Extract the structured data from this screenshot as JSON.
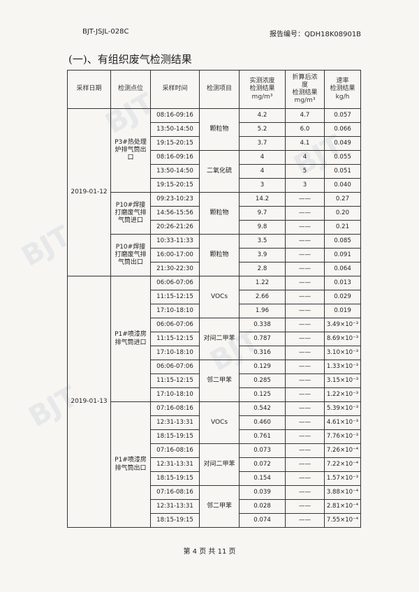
{
  "header": {
    "doc_code": "BJT-JSJL-028C",
    "report_number": "报告编号：QDH18K08901B"
  },
  "section_title": "(一)、有组织废气检测结果",
  "columns": [
    "采样日期",
    "检测点位",
    "采样时间",
    "检测项目",
    "实测浓度\n检测结果\nmg/m³",
    "折算后浓\n度\n检测结果\nmg/m³",
    "速率\n检测结果\nkg/h"
  ],
  "groups": [
    {
      "date": "2019-01-12",
      "locations": [
        {
          "name": "P3#热处理炉排气筒出口",
          "items": [
            {
              "name": "颗粒物",
              "samples": [
                {
                  "time": "08:16-09:16",
                  "conc": "4.2",
                  "corr": "4.7",
                  "rate": "0.057"
                },
                {
                  "time": "13:50-14:50",
                  "conc": "5.2",
                  "corr": "6.0",
                  "rate": "0.066"
                },
                {
                  "time": "19:15-20:15",
                  "conc": "3.7",
                  "corr": "4.1",
                  "rate": "0.049"
                }
              ]
            },
            {
              "name": "二氧化硫",
              "samples": [
                {
                  "time": "08:16-09:16",
                  "conc": "4",
                  "corr": "4",
                  "rate": "0.055"
                },
                {
                  "time": "13:50-14:50",
                  "conc": "4",
                  "corr": "5",
                  "rate": "0.051"
                },
                {
                  "time": "19:15-20:15",
                  "conc": "3",
                  "corr": "3",
                  "rate": "0.040"
                }
              ]
            }
          ]
        },
        {
          "name": "P10#焊接打磨废气排气筒进口",
          "items": [
            {
              "name": "颗粒物",
              "samples": [
                {
                  "time": "09:23-10:23",
                  "conc": "14.2",
                  "corr": "——",
                  "rate": "0.27"
                },
                {
                  "time": "14:56-15:56",
                  "conc": "9.7",
                  "corr": "——",
                  "rate": "0.20"
                },
                {
                  "time": "20:26-21:26",
                  "conc": "9.8",
                  "corr": "——",
                  "rate": "0.21"
                }
              ]
            }
          ]
        },
        {
          "name": "P10#焊接打磨废气排气筒出口",
          "items": [
            {
              "name": "颗粒物",
              "samples": [
                {
                  "time": "10:33-11:33",
                  "conc": "3.5",
                  "corr": "——",
                  "rate": "0.085"
                },
                {
                  "time": "16:00-17:00",
                  "conc": "3.9",
                  "corr": "——",
                  "rate": "0.091"
                },
                {
                  "time": "21:30-22:30",
                  "conc": "2.8",
                  "corr": "——",
                  "rate": "0.064"
                }
              ]
            }
          ]
        }
      ]
    },
    {
      "date": "2019-01-13",
      "locations": [
        {
          "name": "P1#喷漆房排气筒进口",
          "items": [
            {
              "name": "VOCs",
              "samples": [
                {
                  "time": "06:06-07:06",
                  "conc": "1.22",
                  "corr": "——",
                  "rate": "0.013"
                },
                {
                  "time": "11:15-12:15",
                  "conc": "2.66",
                  "corr": "——",
                  "rate": "0.029"
                },
                {
                  "time": "17:10-18:10",
                  "conc": "1.96",
                  "corr": "——",
                  "rate": "0.019"
                }
              ]
            },
            {
              "name": "对间二甲苯",
              "samples": [
                {
                  "time": "06:06-07:06",
                  "conc": "0.338",
                  "corr": "——",
                  "rate": "3.49×10⁻³"
                },
                {
                  "time": "11:15-12:15",
                  "conc": "0.787",
                  "corr": "——",
                  "rate": "8.69×10⁻³"
                },
                {
                  "time": "17:10-18:10",
                  "conc": "0.316",
                  "corr": "——",
                  "rate": "3.10×10⁻³"
                }
              ]
            },
            {
              "name": "邻二甲苯",
              "samples": [
                {
                  "time": "06:06-07:06",
                  "conc": "0.129",
                  "corr": "——",
                  "rate": "1.33×10⁻³"
                },
                {
                  "time": "11:15-12:15",
                  "conc": "0.285",
                  "corr": "——",
                  "rate": "3.15×10⁻³"
                },
                {
                  "time": "17:10-18:10",
                  "conc": "0.125",
                  "corr": "——",
                  "rate": "1.22×10⁻³"
                }
              ]
            }
          ]
        },
        {
          "name": "P1#喷漆房排气筒出口",
          "items": [
            {
              "name": "VOCs",
              "samples": [
                {
                  "time": "07:16-08:16",
                  "conc": "0.542",
                  "corr": "——",
                  "rate": "5.39×10⁻³"
                },
                {
                  "time": "12:31-13:31",
                  "conc": "0.460",
                  "corr": "——",
                  "rate": "4.61×10⁻³"
                },
                {
                  "time": "18:15-19:15",
                  "conc": "0.761",
                  "corr": "——",
                  "rate": "7.76×10⁻³"
                }
              ]
            },
            {
              "name": "对间二甲苯",
              "samples": [
                {
                  "time": "07:16-08:16",
                  "conc": "0.073",
                  "corr": "——",
                  "rate": "7.26×10⁻⁴"
                },
                {
                  "time": "12:31-13:31",
                  "conc": "0.072",
                  "corr": "——",
                  "rate": "7.22×10⁻⁴"
                },
                {
                  "time": "18:15-19:15",
                  "conc": "0.154",
                  "corr": "——",
                  "rate": "1.57×10⁻³"
                }
              ]
            },
            {
              "name": "邻二甲苯",
              "samples": [
                {
                  "time": "07:16-08:16",
                  "conc": "0.039",
                  "corr": "——",
                  "rate": "3.88×10⁻⁴"
                },
                {
                  "time": "12:31-13:31",
                  "conc": "0.028",
                  "corr": "——",
                  "rate": "2.81×10⁻⁴"
                },
                {
                  "time": "18:15-19:15",
                  "conc": "0.074",
                  "corr": "——",
                  "rate": "7.55×10⁻⁴"
                }
              ]
            }
          ]
        }
      ]
    }
  ],
  "footer": "第 4 页 共 11 页",
  "watermark": "BJT"
}
